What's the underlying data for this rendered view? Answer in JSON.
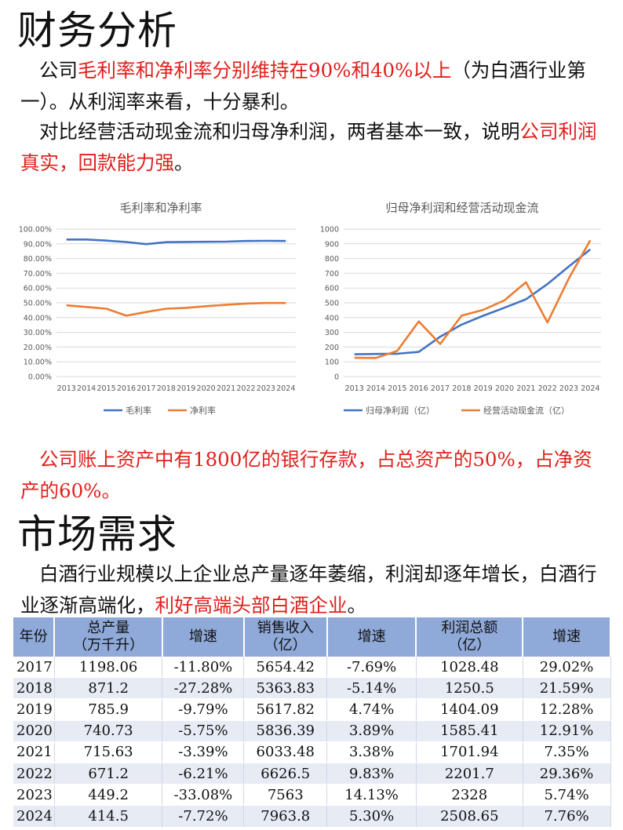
{
  "section1": {
    "title": "财务分析",
    "p1": [
      {
        "text": "公司",
        "red": false
      },
      {
        "text": "毛利率和净利率分别维持在90%和40%以上",
        "red": true
      },
      {
        "text": "（为白酒行业第一）。从利润率来看，十分暴利。",
        "red": false
      }
    ],
    "p2": [
      {
        "text": "对比经营活动现金流和归母净利润，两者基本一致，说明",
        "red": false
      },
      {
        "text": "公司利润真实，回款能力强",
        "red": true
      },
      {
        "text": "。",
        "red": false
      }
    ]
  },
  "chart_data": [
    {
      "type": "line",
      "title": "毛利率和净利率",
      "x": [
        "2013",
        "2014",
        "2015",
        "2016",
        "2017",
        "2018",
        "2019",
        "2020",
        "2021",
        "2022",
        "2023",
        "2024"
      ],
      "y_ticks": [
        "0.00%",
        "10.00%",
        "20.00%",
        "30.00%",
        "40.00%",
        "50.00%",
        "60.00%",
        "70.00%",
        "80.00%",
        "90.00%",
        "100.00%"
      ],
      "ylim": [
        0,
        100
      ],
      "grid": true,
      "legend": "bottom",
      "series": [
        {
          "name": "毛利率",
          "color": "#4472c4",
          "values": [
            92.9,
            92.9,
            92.2,
            91.2,
            89.8,
            91.1,
            91.3,
            91.4,
            91.5,
            91.9,
            92.0,
            91.9
          ]
        },
        {
          "name": "净利率",
          "color": "#ed7d31",
          "values": [
            48.3,
            47.2,
            46.0,
            41.3,
            43.8,
            46.0,
            46.6,
            47.7,
            48.6,
            49.5,
            49.9,
            49.9
          ]
        }
      ]
    },
    {
      "type": "line",
      "title": "归母净利润和经营活动现金流",
      "x": [
        "2013",
        "2014",
        "2015",
        "2016",
        "2017",
        "2018",
        "2019",
        "2020",
        "2021",
        "2022",
        "2023",
        "2024"
      ],
      "y_ticks": [
        "0",
        "100",
        "200",
        "300",
        "400",
        "500",
        "600",
        "700",
        "800",
        "900",
        "1000"
      ],
      "ylim": [
        0,
        1000
      ],
      "grid": true,
      "legend": "bottom",
      "series": [
        {
          "name": "归母净利润（亿）",
          "color": "#4472c4",
          "values": [
            151,
            153,
            155,
            167,
            270,
            352,
            412,
            467,
            524,
            627,
            747,
            862
          ]
        },
        {
          "name": "经营活动现金流（亿）",
          "color": "#ed7d31",
          "values": [
            127,
            126,
            174,
            374,
            221,
            413,
            452,
            517,
            640,
            367,
            666,
            924
          ]
        }
      ]
    }
  ],
  "section1_note": [
    {
      "text": "公司账上资产中有1800亿的银行存款，占总资产的50%，占净资产的60%。",
      "red": true
    }
  ],
  "section2": {
    "title": "市场需求",
    "p1": [
      {
        "text": "白酒行业规模以上企业总产量逐年萎缩，利润却逐年增长，白酒行业逐渐高端化，",
        "red": false
      },
      {
        "text": "利好高端头部白酒企业",
        "red": true
      },
      {
        "text": "。",
        "red": false
      }
    ]
  },
  "table": {
    "headers": [
      "年份",
      "总产量\n（万千升）",
      "增速",
      "销售收入\n（亿）",
      "增速",
      "利润总额\n（亿）",
      "增速"
    ],
    "rows": [
      [
        "2017",
        "1198.06",
        "-11.80%",
        "5654.42",
        "-7.69%",
        "1028.48",
        "29.02%"
      ],
      [
        "2018",
        "871.2",
        "-27.28%",
        "5363.83",
        "-5.14%",
        "1250.5",
        "21.59%"
      ],
      [
        "2019",
        "785.9",
        "-9.79%",
        "5617.82",
        "4.74%",
        "1404.09",
        "12.28%"
      ],
      [
        "2020",
        "740.73",
        "-5.75%",
        "5836.39",
        "3.89%",
        "1585.41",
        "12.91%"
      ],
      [
        "2021",
        "715.63",
        "-3.39%",
        "6033.48",
        "3.38%",
        "1701.94",
        "7.35%"
      ],
      [
        "2022",
        "671.2",
        "-6.21%",
        "6626.5",
        "9.83%",
        "2201.7",
        "29.36%"
      ],
      [
        "2023",
        "449.2",
        "-33.08%",
        "7563",
        "14.13%",
        "2328",
        "5.74%"
      ],
      [
        "2024",
        "414.5",
        "-7.72%",
        "7963.8",
        "5.30%",
        "2508.65",
        "7.76%"
      ]
    ]
  }
}
